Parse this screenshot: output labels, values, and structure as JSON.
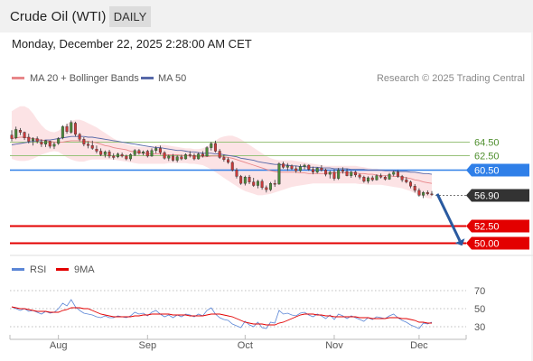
{
  "header": {
    "title": "Crude Oil (WTI)",
    "timeframe": "DAILY",
    "datetime": "Monday, December 22, 2025 2:28:00 AM CET"
  },
  "legend": {
    "ma20": "MA 20 + Bollinger Bands",
    "ma50": "MA 50",
    "credit": "Research © 2025 Trading Central",
    "rsi": "RSI",
    "rsi9": "9MA"
  },
  "colors": {
    "bull": "#4a8a3a",
    "bear": "#c93a3a",
    "band": "#fbd9dc",
    "ma20": "#e8878a",
    "ma50": "#5768a8",
    "resistance": "#2f7fe8",
    "support": "#e30000",
    "target_line": "#98c27a",
    "last": "#333333",
    "arrow": "#2a5aa0"
  },
  "chart_data": [
    {
      "type": "candlestick",
      "x_labels": [
        "Aug",
        "Sep",
        "Oct",
        "Nov",
        "Dec"
      ],
      "ylim": [
        48.6,
        71.8
      ],
      "candles": [
        [
          65.4,
          66.1,
          64.5,
          64.9
        ],
        [
          65.0,
          66.6,
          64.8,
          66.2
        ],
        [
          66.1,
          66.4,
          65.4,
          65.8
        ],
        [
          65.8,
          65.9,
          64.7,
          65.0
        ],
        [
          65.1,
          65.6,
          64.2,
          64.5
        ],
        [
          64.6,
          65.1,
          63.9,
          64.9
        ],
        [
          64.9,
          65.2,
          64.2,
          64.5
        ],
        [
          64.4,
          64.8,
          63.7,
          64.1
        ],
        [
          64.1,
          64.7,
          63.7,
          64.6
        ],
        [
          64.5,
          64.6,
          63.5,
          63.8
        ],
        [
          63.8,
          64.4,
          63.4,
          64.1
        ],
        [
          64.2,
          65.1,
          64.0,
          64.9
        ],
        [
          65.0,
          66.8,
          64.8,
          66.6
        ],
        [
          66.6,
          67.0,
          65.6,
          65.9
        ],
        [
          65.8,
          67.5,
          65.6,
          67.2
        ],
        [
          67.1,
          67.3,
          65.2,
          65.5
        ],
        [
          65.5,
          65.7,
          64.5,
          64.8
        ],
        [
          64.8,
          65.1,
          63.8,
          64.1
        ],
        [
          64.1,
          64.5,
          63.5,
          63.9
        ],
        [
          63.9,
          64.6,
          63.3,
          63.5
        ],
        [
          63.4,
          63.9,
          62.8,
          63.1
        ],
        [
          63.1,
          63.5,
          62.4,
          62.6
        ],
        [
          62.6,
          63.2,
          62.2,
          63.0
        ],
        [
          63.0,
          63.3,
          62.1,
          62.4
        ],
        [
          62.4,
          62.8,
          61.9,
          62.2
        ],
        [
          62.3,
          62.9,
          62.1,
          62.7
        ],
        [
          62.6,
          62.9,
          62.2,
          62.4
        ],
        [
          62.4,
          62.6,
          61.8,
          62.0
        ],
        [
          62.0,
          62.8,
          61.7,
          62.6
        ],
        [
          62.6,
          63.4,
          62.4,
          63.2
        ],
        [
          63.2,
          63.4,
          62.6,
          62.8
        ],
        [
          62.8,
          63.2,
          62.5,
          63.0
        ],
        [
          63.1,
          63.3,
          62.2,
          62.4
        ],
        [
          62.4,
          63.5,
          62.3,
          63.2
        ],
        [
          63.2,
          63.8,
          62.8,
          63.5
        ],
        [
          63.5,
          63.9,
          62.6,
          62.9
        ],
        [
          62.9,
          63.1,
          61.9,
          62.1
        ],
        [
          62.1,
          62.6,
          61.7,
          62.4
        ],
        [
          62.4,
          62.7,
          61.6,
          61.8
        ],
        [
          61.8,
          62.5,
          61.5,
          62.3
        ],
        [
          62.3,
          62.6,
          61.8,
          62.0
        ],
        [
          62.0,
          62.8,
          61.9,
          62.6
        ],
        [
          62.6,
          63.1,
          62.2,
          62.5
        ],
        [
          62.5,
          62.8,
          61.8,
          62.0
        ],
        [
          62.0,
          62.9,
          61.9,
          62.7
        ],
        [
          62.7,
          63.1,
          62.2,
          62.4
        ],
        [
          62.4,
          63.8,
          62.3,
          63.6
        ],
        [
          63.6,
          64.4,
          63.2,
          64.2
        ],
        [
          64.2,
          64.6,
          62.9,
          63.1
        ],
        [
          63.1,
          63.4,
          62.0,
          62.2
        ],
        [
          62.2,
          62.6,
          61.6,
          61.9
        ],
        [
          61.9,
          62.2,
          61.3,
          61.5
        ],
        [
          61.5,
          61.7,
          60.2,
          60.4
        ],
        [
          60.4,
          60.7,
          59.2,
          59.5
        ],
        [
          59.5,
          59.7,
          58.3,
          58.5
        ],
        [
          58.5,
          59.6,
          58.2,
          59.4
        ],
        [
          59.4,
          59.7,
          58.4,
          58.7
        ],
        [
          58.7,
          59.3,
          58.0,
          58.2
        ],
        [
          58.2,
          59.0,
          57.8,
          58.8
        ],
        [
          58.8,
          59.1,
          57.6,
          57.9
        ],
        [
          57.9,
          58.2,
          57.2,
          57.6
        ],
        [
          57.6,
          58.7,
          57.4,
          58.5
        ],
        [
          58.5,
          59.0,
          58.0,
          58.4
        ],
        [
          58.4,
          61.5,
          58.3,
          61.3
        ],
        [
          61.3,
          61.6,
          60.6,
          60.8
        ],
        [
          60.8,
          61.4,
          60.3,
          61.0
        ],
        [
          61.0,
          61.2,
          60.4,
          60.6
        ],
        [
          60.6,
          61.0,
          60.0,
          60.3
        ],
        [
          60.3,
          61.2,
          60.1,
          60.9
        ],
        [
          60.9,
          61.3,
          60.5,
          61.1
        ],
        [
          61.1,
          61.2,
          60.3,
          60.5
        ],
        [
          60.5,
          60.9,
          59.8,
          60.1
        ],
        [
          60.1,
          60.8,
          59.9,
          60.7
        ],
        [
          60.7,
          61.1,
          60.2,
          60.4
        ],
        [
          60.4,
          60.6,
          59.5,
          59.8
        ],
        [
          59.8,
          60.3,
          59.2,
          60.1
        ],
        [
          60.1,
          60.5,
          58.9,
          59.2
        ],
        [
          59.2,
          60.7,
          59.0,
          60.4
        ],
        [
          60.4,
          60.8,
          59.9,
          60.2
        ],
        [
          60.2,
          60.6,
          59.5,
          59.6
        ],
        [
          59.6,
          60.3,
          59.3,
          60.1
        ],
        [
          60.1,
          60.3,
          59.4,
          59.7
        ],
        [
          59.7,
          59.9,
          59.1,
          59.4
        ],
        [
          59.4,
          59.6,
          58.6,
          58.8
        ],
        [
          58.8,
          59.5,
          58.5,
          59.3
        ],
        [
          59.3,
          59.6,
          58.8,
          59.0
        ],
        [
          59.0,
          59.8,
          58.9,
          59.6
        ],
        [
          59.6,
          59.9,
          59.2,
          59.4
        ],
        [
          59.4,
          59.6,
          58.9,
          59.1
        ],
        [
          59.1,
          60.0,
          59.0,
          59.8
        ],
        [
          59.8,
          60.3,
          59.5,
          60.1
        ],
        [
          60.1,
          60.4,
          59.3,
          59.5
        ],
        [
          59.5,
          59.7,
          58.7,
          59.0
        ],
        [
          59.0,
          59.4,
          58.5,
          58.7
        ],
        [
          58.7,
          58.9,
          57.8,
          58.1
        ],
        [
          58.1,
          58.4,
          57.2,
          57.5
        ],
        [
          57.5,
          57.8,
          56.6,
          56.8
        ],
        [
          56.8,
          57.4,
          56.4,
          57.2
        ],
        [
          57.2,
          57.5,
          56.8,
          57.0
        ],
        [
          57.0,
          57.4,
          56.7,
          56.9
        ]
      ],
      "ma20": [
        64.9,
        65.0,
        65.1,
        65.1,
        65.0,
        64.9,
        64.8,
        64.7,
        64.6,
        64.5,
        64.4,
        64.4,
        64.4,
        64.5,
        64.6,
        64.6,
        64.6,
        64.5,
        64.5,
        64.4,
        64.3,
        64.1,
        63.9,
        63.8,
        63.6,
        63.5,
        63.4,
        63.3,
        63.1,
        63.0,
        62.9,
        62.8,
        62.7,
        62.7,
        62.7,
        62.7,
        62.6,
        62.6,
        62.6,
        62.6,
        62.5,
        62.5,
        62.4,
        62.4,
        62.3,
        62.3,
        62.3,
        62.4,
        62.4,
        62.4,
        62.3,
        62.2,
        62.1,
        61.9,
        61.7,
        61.5,
        61.3,
        61.1,
        60.9,
        60.7,
        60.5,
        60.3,
        60.2,
        60.1,
        60.1,
        60.1,
        60.1,
        60.1,
        60.0,
        60.0,
        59.9,
        59.9,
        59.9,
        59.9,
        59.9,
        60.0,
        60.0,
        60.0,
        60.0,
        60.0,
        60.0,
        60.0,
        59.9,
        59.9,
        59.8,
        59.8,
        59.7,
        59.6,
        59.6,
        59.6,
        59.5,
        59.5,
        59.4,
        59.3,
        59.2,
        59.0,
        58.9,
        58.7,
        58.6,
        58.5
      ],
      "bb_upper": [
        68.8,
        69.2,
        69.5,
        69.5,
        69.2,
        68.5,
        67.6,
        66.8,
        66.2,
        65.9,
        65.8,
        66.0,
        66.5,
        67.0,
        67.4,
        67.6,
        67.6,
        67.4,
        67.1,
        66.8,
        66.5,
        66.1,
        65.7,
        65.3,
        64.9,
        64.6,
        64.3,
        64.1,
        63.9,
        63.8,
        63.7,
        63.7,
        63.7,
        63.8,
        63.9,
        64.0,
        64.0,
        63.9,
        63.8,
        63.7,
        63.6,
        63.5,
        63.5,
        63.4,
        63.4,
        63.5,
        63.8,
        64.2,
        64.6,
        65.0,
        65.2,
        65.3,
        65.3,
        65.1,
        64.8,
        64.4,
        64.0,
        63.6,
        63.2,
        62.8,
        62.4,
        62.1,
        61.9,
        61.8,
        61.8,
        61.8,
        61.8,
        61.7,
        61.6,
        61.5,
        61.4,
        61.3,
        61.2,
        61.1,
        61.0,
        61.0,
        61.0,
        61.0,
        61.0,
        61.0,
        61.0,
        61.0,
        60.9,
        60.8,
        60.7,
        60.6,
        60.6,
        60.5,
        60.5,
        60.5,
        60.5,
        60.5,
        60.4,
        60.4,
        60.3,
        60.2,
        60.1,
        60.0,
        59.9,
        59.8
      ],
      "bb_lower": [
        62.0,
        61.8,
        61.7,
        61.7,
        61.8,
        62.0,
        62.3,
        62.6,
        62.8,
        63.0,
        63.1,
        63.0,
        62.6,
        62.2,
        61.9,
        61.7,
        61.6,
        61.6,
        61.8,
        61.9,
        61.9,
        61.9,
        61.9,
        61.9,
        61.9,
        61.8,
        61.7,
        61.6,
        61.5,
        61.4,
        61.3,
        61.3,
        61.3,
        61.3,
        61.3,
        61.3,
        61.3,
        61.4,
        61.4,
        61.4,
        61.4,
        61.4,
        61.3,
        61.3,
        61.2,
        61.1,
        60.8,
        60.5,
        60.1,
        59.7,
        59.3,
        58.9,
        58.5,
        58.1,
        57.7,
        57.4,
        57.2,
        57.0,
        56.8,
        56.8,
        56.9,
        57.0,
        57.2,
        57.4,
        57.6,
        57.8,
        58.0,
        58.1,
        58.2,
        58.3,
        58.4,
        58.5,
        58.5,
        58.5,
        58.5,
        58.5,
        58.5,
        58.5,
        58.5,
        58.5,
        58.5,
        58.5,
        58.4,
        58.4,
        58.3,
        58.3,
        58.3,
        58.3,
        58.2,
        58.1,
        58.0,
        57.9,
        57.8,
        57.6,
        57.4,
        57.1,
        56.9,
        56.6,
        56.4,
        56.3
      ],
      "ma50": [
        64.0,
        64.1,
        64.2,
        64.3,
        64.4,
        64.5,
        64.6,
        64.6,
        64.7,
        64.7,
        64.8,
        64.9,
        65.0,
        65.1,
        65.2,
        65.2,
        65.2,
        65.2,
        65.1,
        65.1,
        65.0,
        64.9,
        64.8,
        64.7,
        64.6,
        64.5,
        64.4,
        64.3,
        64.2,
        64.1,
        64.0,
        63.9,
        63.8,
        63.7,
        63.6,
        63.6,
        63.5,
        63.4,
        63.3,
        63.2,
        63.2,
        63.1,
        63.0,
        63.0,
        62.9,
        62.8,
        62.8,
        62.8,
        62.7,
        62.7,
        62.6,
        62.5,
        62.4,
        62.3,
        62.1,
        62.0,
        61.9,
        61.8,
        61.6,
        61.5,
        61.4,
        61.3,
        61.2,
        61.2,
        61.1,
        61.1,
        61.0,
        61.0,
        60.9,
        60.9,
        60.8,
        60.8,
        60.8,
        60.7,
        60.7,
        60.7,
        60.6,
        60.6,
        60.6,
        60.6,
        60.5,
        60.5,
        60.5,
        60.5,
        60.4,
        60.4,
        60.4,
        60.4,
        60.3,
        60.3,
        60.3,
        60.2,
        60.2,
        60.2,
        60.1,
        60.1,
        60.0,
        59.9,
        59.9,
        59.8
      ],
      "levels": [
        {
          "value": 64.5,
          "label": "64.50",
          "kind": "target"
        },
        {
          "value": 62.5,
          "label": "62.50",
          "kind": "target"
        },
        {
          "value": 60.5,
          "label": "60.50",
          "kind": "resistance"
        },
        {
          "value": 56.9,
          "label": "56.90",
          "kind": "last"
        },
        {
          "value": 52.5,
          "label": "52.50",
          "kind": "support"
        },
        {
          "value": 50.0,
          "label": "50.00",
          "kind": "support"
        }
      ],
      "forecast_arrow": {
        "from": 57.0,
        "to": 50.3
      }
    },
    {
      "type": "line",
      "ylim": [
        20,
        80
      ],
      "y_ticks": [
        70,
        50,
        30
      ],
      "guide_levels": [
        70,
        50,
        30
      ],
      "series": [
        {
          "name": "RSI",
          "values": [
            52,
            50,
            48,
            50,
            47,
            48,
            46,
            44,
            47,
            45,
            46,
            50,
            56,
            53,
            60,
            52,
            48,
            45,
            44,
            43,
            41,
            40,
            42,
            40,
            40,
            42,
            41,
            40,
            42,
            46,
            44,
            45,
            42,
            46,
            48,
            44,
            41,
            43,
            40,
            43,
            41,
            44,
            43,
            41,
            44,
            42,
            48,
            51,
            44,
            40,
            38,
            37,
            33,
            31,
            29,
            36,
            32,
            30,
            35,
            29,
            28,
            35,
            34,
            48,
            44,
            45,
            43,
            42,
            45,
            46,
            43,
            41,
            44,
            42,
            39,
            43,
            38,
            44,
            42,
            39,
            42,
            40,
            38,
            36,
            40,
            38,
            41,
            40,
            39,
            42,
            44,
            40,
            37,
            35,
            32,
            30,
            28,
            34,
            33,
            35
          ]
        },
        {
          "name": "9MA",
          "values": [
            52,
            51,
            50,
            50,
            49,
            48,
            47,
            47,
            47,
            46,
            46,
            46,
            48,
            49,
            51,
            51,
            51,
            50,
            50,
            48,
            46,
            44,
            43,
            42,
            41,
            41,
            41,
            41,
            41,
            42,
            42,
            43,
            43,
            44,
            44,
            44,
            44,
            44,
            43,
            43,
            43,
            43,
            42,
            42,
            42,
            42,
            43,
            44,
            44,
            44,
            43,
            42,
            41,
            39,
            37,
            35,
            34,
            33,
            33,
            33,
            32,
            32,
            32,
            34,
            35,
            37,
            39,
            41,
            43,
            44,
            44,
            44,
            43,
            43,
            42,
            42,
            41,
            41,
            41,
            41,
            41,
            41,
            40,
            40,
            40,
            39,
            39,
            39,
            39,
            40,
            40,
            40,
            39,
            39,
            38,
            37,
            35,
            35,
            34,
            34
          ]
        }
      ]
    }
  ]
}
